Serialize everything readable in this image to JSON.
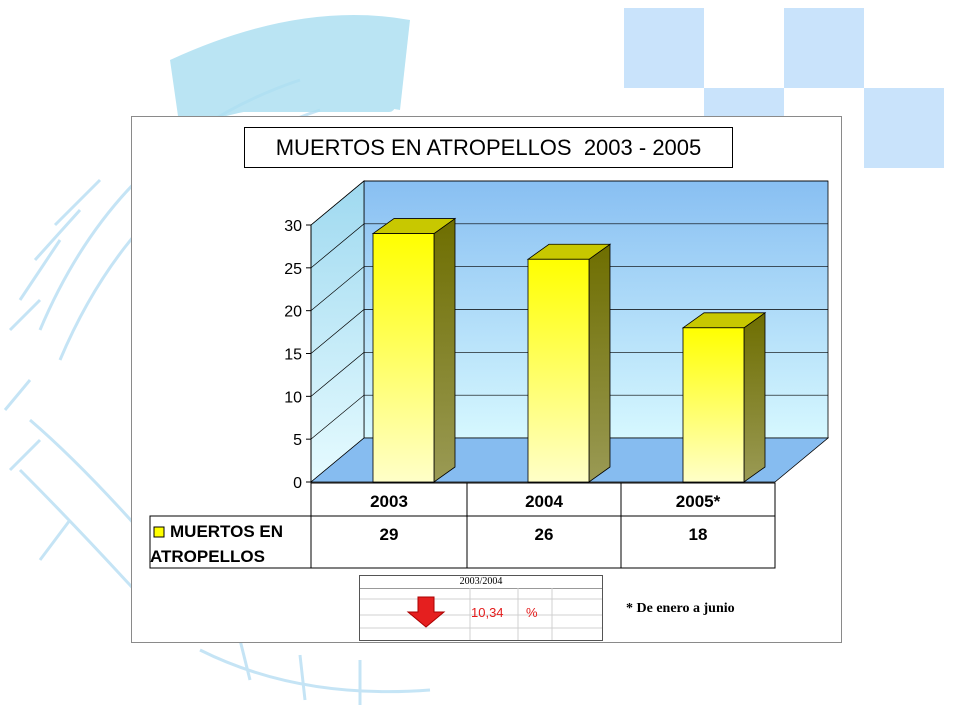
{
  "chart_data": {
    "type": "bar",
    "title": "MUERTOS EN ATROPELLOS  2003 - 2005",
    "categories": [
      "2003",
      "2004",
      "2005*"
    ],
    "series": [
      {
        "name": "MUERTOS EN ATROPELLOS",
        "values": [
          29,
          26,
          18
        ]
      }
    ],
    "ylim": [
      0,
      30
    ],
    "yticks": [
      "0",
      "5",
      "10",
      "15",
      "20",
      "25",
      "30"
    ],
    "grid": true,
    "legend": "data-table",
    "data_table": {
      "series_label_line1": "MUERTOS EN",
      "series_label_line2": "ATROPELLOS",
      "value_labels": [
        "29",
        "26",
        "18"
      ]
    },
    "colors": {
      "bar_front": "#ffff00",
      "bar_side": "#808000",
      "wall": "#88bff2",
      "floor": "#86bcf0"
    }
  },
  "comparison": {
    "header": "2003/2004",
    "value": "10,34",
    "unit": "%",
    "icon": "down-arrow-icon",
    "color": "#e41b1b"
  },
  "footnote": "* De enero a junio"
}
